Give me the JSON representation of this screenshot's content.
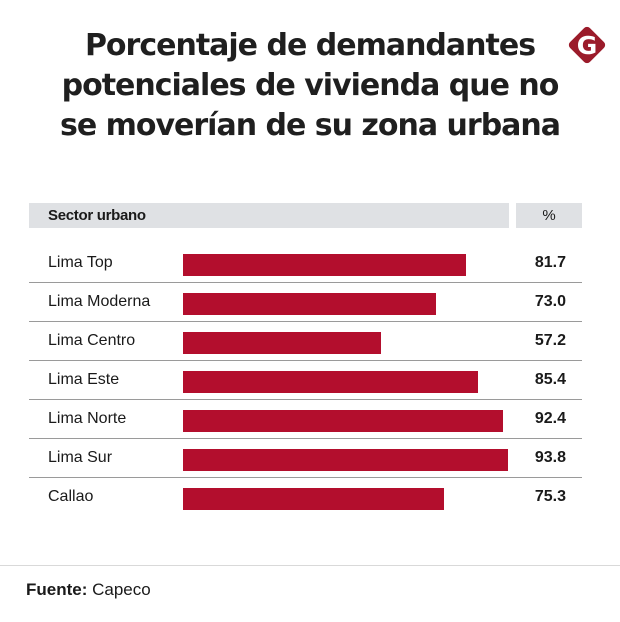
{
  "title_lines": [
    "Porcentaje de demandantes",
    "potenciales de vivienda que no",
    "se moverían de su zona urbana"
  ],
  "logo": {
    "letter": "G",
    "icon": "gestion-logo-icon",
    "color": "#9b1b2a"
  },
  "colors": {
    "bar": "#b30e2d",
    "header_bg": "#dfe1e4"
  },
  "table_header": {
    "sector": "Sector urbano",
    "percent": "%"
  },
  "chart_data": {
    "type": "bar",
    "orientation": "horizontal",
    "title": "Porcentaje de demandantes potenciales de vivienda que no se moverían de su zona urbana",
    "xlabel": "%",
    "ylabel": "Sector urbano",
    "categories": [
      "Lima Top",
      "Lima Moderna",
      "Lima Centro",
      "Lima Este",
      "Lima Norte",
      "Lima Sur",
      "Callao"
    ],
    "values": [
      81.7,
      73.0,
      57.2,
      85.4,
      92.4,
      93.8,
      75.3
    ],
    "value_labels": [
      "81.7",
      "73.0",
      "57.2",
      "85.4",
      "92.4",
      "93.8",
      "75.3"
    ],
    "xlim": [
      0,
      100
    ],
    "grid": false,
    "legend": "none"
  },
  "source": {
    "label": "Fuente:",
    "value": "Capeco"
  }
}
